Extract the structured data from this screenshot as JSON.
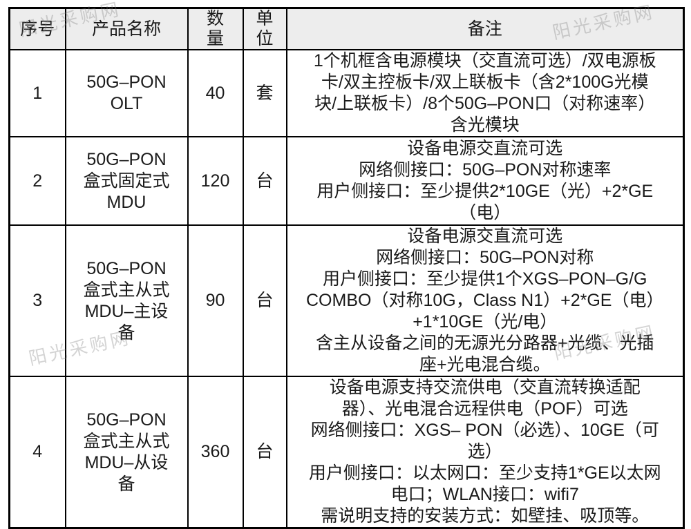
{
  "watermark": {
    "text": "阳光采购网"
  },
  "table": {
    "headers": [
      "序号",
      "产品名称",
      "数\n量",
      "单\n位",
      "备注"
    ],
    "rows": [
      {
        "serial": "1",
        "product_name": "50G–PON\nOLT",
        "quantity": "40",
        "unit": "套",
        "remark": "1个机框含电源模块（交直流可选）/双电源板\n卡/双主控板卡/双上联板卡（含2*100G光模\n块/上联板卡）/8个50G–PON口（对称速率）\n含光模块"
      },
      {
        "serial": "2",
        "product_name": "50G–PON\n盒式固定式\nMDU",
        "quantity": "120",
        "unit": "台",
        "remark": "设备电源交直流可选\n网络侧接口：50G–PON对称速率\n用户侧接口：至少提供2*10GE（光）+2*GE\n（电）"
      },
      {
        "serial": "3",
        "product_name": "50G–PON\n盒式主从式\nMDU–主设\n备",
        "quantity": "90",
        "unit": "台",
        "remark": "设备电源交直流可选\n网络侧接口：50G–PON对称\n用户侧接口：至少提供1个XGS–PON–G/G\nCOMBO（对称10G，Class N1）+2*GE（电）\n+1*10GE（光/电）\n含主从设备之间的无源光分路器+光缆、光插\n座+光电混合缆。"
      },
      {
        "serial": "4",
        "product_name": "50G–PON\n盒式主从式\nMDU–从设\n备",
        "quantity": "360",
        "unit": "台",
        "remark": "设备电源支持交流供电（交直流转换适配\n器）、光电混合远程供电（POF）可选\n网络侧接口：XGS– PON（必选）、10GE（可\n选）\n用户侧接口：以太网口：至少支持1*GE以太网\n电口；WLAN接口：wifi7\n需说明支持的安装方式：如壁挂、吸顶等。"
      }
    ]
  },
  "colors": {
    "header_bg": "#ededed",
    "border": "#000000",
    "watermark_gray": "#c9c9c9"
  }
}
